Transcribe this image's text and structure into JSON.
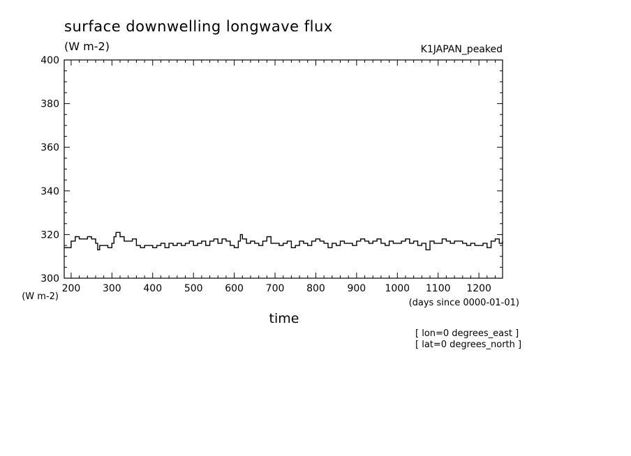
{
  "chart_data": {
    "type": "line",
    "title": "surface downwelling longwave flux",
    "units": "(W m-2)",
    "dataset_label": "K1JAPAN_peaked",
    "xlabel": "time",
    "x_units": "(days since 0000-01-01)",
    "y_units_label": "(W m-2)",
    "coords": [
      "[ lon=0 degrees_east ]",
      "[ lat=0 degrees_north ]"
    ],
    "xlim": [
      183,
      1258
    ],
    "ylim": [
      300,
      400
    ],
    "xticks": [
      200,
      300,
      400,
      500,
      600,
      700,
      800,
      900,
      1000,
      1100,
      1200
    ],
    "yticks": [
      300,
      320,
      340,
      360,
      380,
      400
    ],
    "line_color": "#000000",
    "series": [
      {
        "x": [
          183,
          200,
          210,
          220,
          230,
          240,
          250,
          260,
          265,
          270,
          280,
          290,
          300,
          305,
          310,
          320,
          330,
          340,
          350,
          360,
          370,
          380,
          390,
          400,
          410,
          420,
          430,
          440,
          450,
          460,
          470,
          480,
          490,
          500,
          510,
          520,
          530,
          540,
          550,
          560,
          570,
          580,
          590,
          600,
          610,
          615,
          620,
          630,
          640,
          650,
          660,
          670,
          680,
          690,
          700,
          710,
          720,
          730,
          740,
          750,
          760,
          770,
          780,
          790,
          800,
          810,
          820,
          830,
          840,
          850,
          860,
          870,
          880,
          890,
          900,
          910,
          920,
          930,
          940,
          950,
          960,
          970,
          980,
          990,
          1000,
          1010,
          1020,
          1030,
          1040,
          1050,
          1060,
          1070,
          1080,
          1090,
          1100,
          1110,
          1120,
          1130,
          1140,
          1150,
          1160,
          1170,
          1180,
          1190,
          1200,
          1210,
          1220,
          1230,
          1240,
          1250,
          1258
        ],
        "y": [
          314,
          317,
          319,
          318,
          318,
          319,
          318,
          316,
          313,
          315,
          315,
          314,
          316,
          319,
          321,
          319,
          317,
          317,
          318,
          315,
          314,
          315,
          315,
          314,
          315,
          316,
          314,
          316,
          315,
          316,
          315,
          316,
          317,
          315,
          316,
          317,
          315,
          317,
          318,
          316,
          318,
          317,
          315,
          314,
          317,
          320,
          318,
          316,
          317,
          316,
          315,
          317,
          319,
          316,
          316,
          315,
          316,
          317,
          314,
          315,
          317,
          316,
          315,
          317,
          318,
          317,
          316,
          314,
          316,
          315,
          317,
          316,
          316,
          315,
          317,
          318,
          317,
          316,
          317,
          318,
          316,
          315,
          317,
          316,
          316,
          317,
          318,
          316,
          317,
          315,
          316,
          313,
          317,
          316,
          316,
          318,
          317,
          316,
          317,
          317,
          316,
          315,
          316,
          315,
          315,
          316,
          314,
          317,
          318,
          316,
          317
        ]
      }
    ]
  }
}
